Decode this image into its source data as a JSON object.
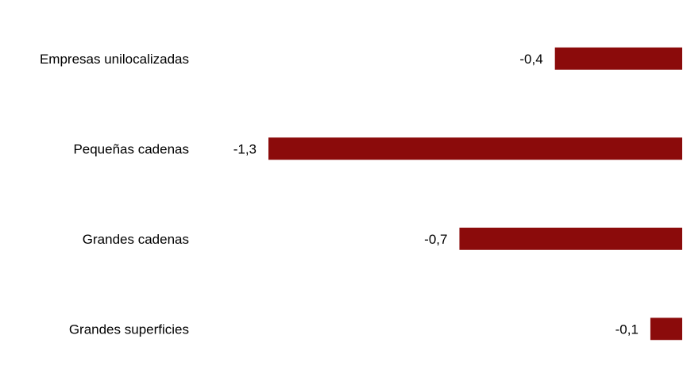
{
  "colors": {
    "bar": "#8b0b0b",
    "text": "#000000",
    "background": "#ffffff"
  },
  "chart_data": {
    "type": "bar",
    "orientation": "horizontal",
    "categories": [
      "Empresas unilocalizadas",
      "Pequeñas cadenas",
      "Grandes cadenas",
      "Grandes superficies"
    ],
    "values": [
      -0.4,
      -1.3,
      -0.7,
      -0.1
    ],
    "value_labels": [
      "-0,4",
      "-1,3",
      "-0,7",
      "-0,1"
    ],
    "title": "",
    "xlabel": "",
    "ylabel": "",
    "xlim": [
      -1.3,
      0
    ],
    "grid": false,
    "legend": "none",
    "axis_visible": false
  }
}
